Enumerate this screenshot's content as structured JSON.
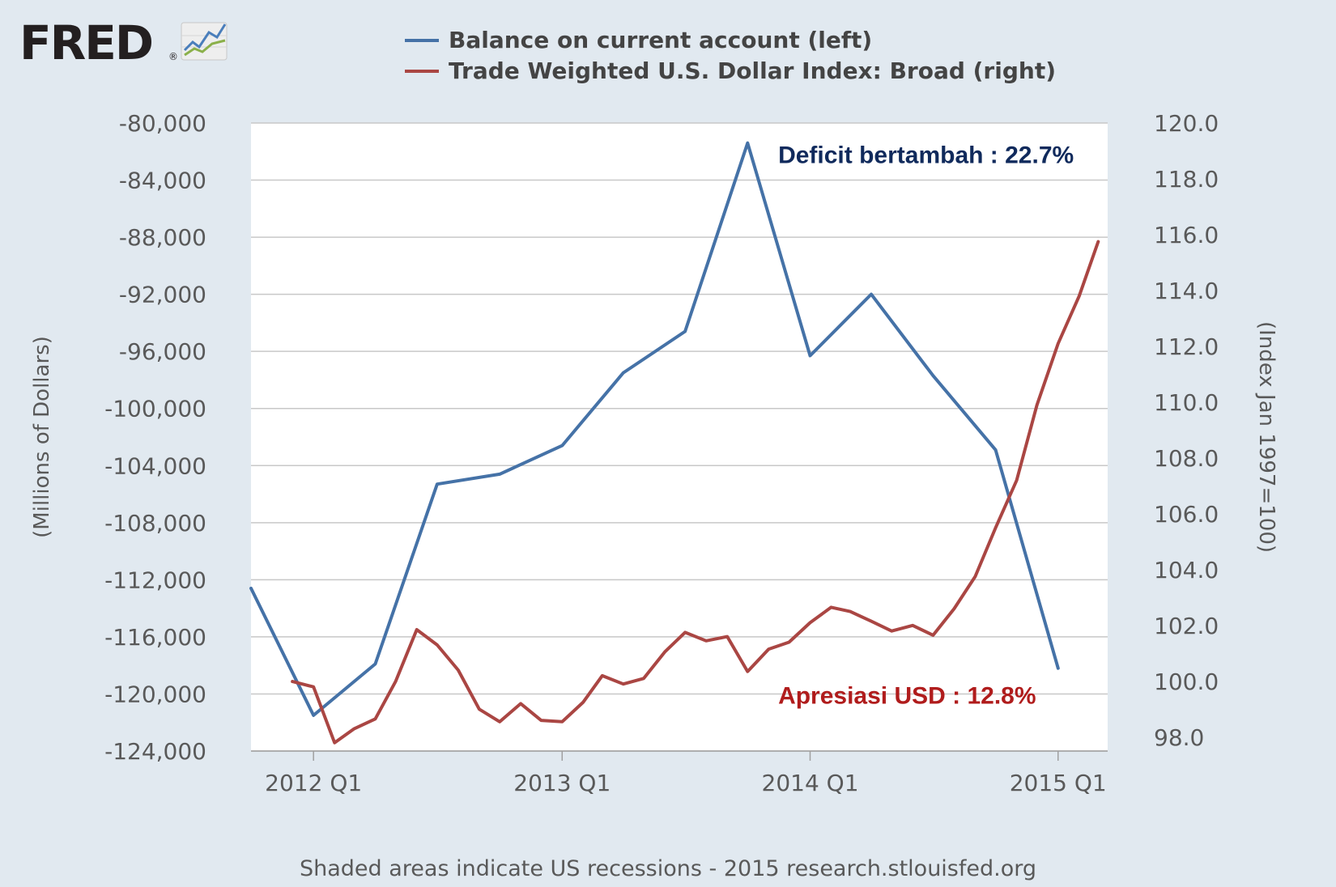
{
  "logo": {
    "text": "FRED",
    "registered": "®",
    "icon": "fred-chart-icon"
  },
  "footer": {
    "text": "Shaded areas indicate US recessions - 2015 research.stlouisfed.org"
  },
  "chart_data": {
    "type": "line",
    "legend_position": "top-center",
    "grid": true,
    "colors": {
      "series_left": "#4572a7",
      "series_right": "#aa4643",
      "annotation_left": "#102a5c",
      "annotation_right": "#b01c1c",
      "plot_bg": "#ffffff",
      "page_bg": "#e1e9f0"
    },
    "x_ticks": [
      {
        "label": "2012 Q1",
        "date": "2012-01-01"
      },
      {
        "label": "2013 Q1",
        "date": "2013-01-01"
      },
      {
        "label": "2014 Q1",
        "date": "2014-01-01"
      },
      {
        "label": "2015 Q1",
        "date": "2015-01-01"
      }
    ],
    "xlim": [
      "2011-10-01",
      "2015-03-15"
    ],
    "y_left": {
      "label": "(Millions of Dollars)",
      "ylim": [
        -124000,
        -80000
      ],
      "ticks": [
        -80000,
        -84000,
        -88000,
        -92000,
        -96000,
        -100000,
        -104000,
        -108000,
        -112000,
        -116000,
        -120000,
        -124000
      ],
      "tick_labels": [
        "-80,000",
        "-84,000",
        "-88,000",
        "-92,000",
        "-96,000",
        "-100,000",
        "-104,000",
        "-108,000",
        "-112,000",
        "-116,000",
        "-120,000",
        "-124,000"
      ]
    },
    "y_right": {
      "label": "(Index Jan 1997=100)",
      "ylim": [
        97.5,
        120
      ],
      "ticks": [
        120,
        118,
        116,
        114,
        112,
        110,
        108,
        106,
        104,
        102,
        100,
        98
      ],
      "tick_labels": [
        "120.0",
        "118.0",
        "116.0",
        "114.0",
        "112.0",
        "110.0",
        "108.0",
        "106.0",
        "104.0",
        "102.0",
        "100.0",
        "98.0"
      ]
    },
    "series": [
      {
        "name": "Balance on current account (left)",
        "axis": "left",
        "points": [
          {
            "x": "2011-10-01",
            "y": -112600
          },
          {
            "x": "2012-01-01",
            "y": -121500
          },
          {
            "x": "2012-04-01",
            "y": -117900
          },
          {
            "x": "2012-07-01",
            "y": -105300
          },
          {
            "x": "2012-10-01",
            "y": -104600
          },
          {
            "x": "2013-01-01",
            "y": -102600
          },
          {
            "x": "2013-04-01",
            "y": -97500
          },
          {
            "x": "2013-07-01",
            "y": -94600
          },
          {
            "x": "2013-10-01",
            "y": -81400
          },
          {
            "x": "2014-01-01",
            "y": -96300
          },
          {
            "x": "2014-04-01",
            "y": -92000
          },
          {
            "x": "2014-07-01",
            "y": -97700
          },
          {
            "x": "2014-10-01",
            "y": -102900
          },
          {
            "x": "2015-01-01",
            "y": -118200
          }
        ]
      },
      {
        "name": "Trade Weighted U.S. Dollar Index: Broad (right)",
        "axis": "right",
        "points": [
          {
            "x": "2011-12-01",
            "y": 99.99
          },
          {
            "x": "2012-01-01",
            "y": 99.8
          },
          {
            "x": "2012-02-01",
            "y": 97.8
          },
          {
            "x": "2012-03-01",
            "y": 98.3
          },
          {
            "x": "2012-04-01",
            "y": 98.65
          },
          {
            "x": "2012-05-01",
            "y": 100.0
          },
          {
            "x": "2012-06-01",
            "y": 101.85
          },
          {
            "x": "2012-07-01",
            "y": 101.3
          },
          {
            "x": "2012-08-01",
            "y": 100.4
          },
          {
            "x": "2012-09-01",
            "y": 99.0
          },
          {
            "x": "2012-10-01",
            "y": 98.55
          },
          {
            "x": "2012-11-01",
            "y": 99.2
          },
          {
            "x": "2012-12-01",
            "y": 98.6
          },
          {
            "x": "2013-01-01",
            "y": 98.55
          },
          {
            "x": "2013-02-01",
            "y": 99.25
          },
          {
            "x": "2013-03-01",
            "y": 100.2
          },
          {
            "x": "2013-04-01",
            "y": 99.9
          },
          {
            "x": "2013-05-01",
            "y": 100.1
          },
          {
            "x": "2013-06-01",
            "y": 101.05
          },
          {
            "x": "2013-07-01",
            "y": 101.75
          },
          {
            "x": "2013-08-01",
            "y": 101.45
          },
          {
            "x": "2013-09-01",
            "y": 101.6
          },
          {
            "x": "2013-10-01",
            "y": 100.35
          },
          {
            "x": "2013-11-01",
            "y": 101.15
          },
          {
            "x": "2013-12-01",
            "y": 101.4
          },
          {
            "x": "2014-01-01",
            "y": 102.1
          },
          {
            "x": "2014-02-01",
            "y": 102.65
          },
          {
            "x": "2014-03-01",
            "y": 102.5
          },
          {
            "x": "2014-04-01",
            "y": 102.15
          },
          {
            "x": "2014-05-01",
            "y": 101.8
          },
          {
            "x": "2014-06-01",
            "y": 102.0
          },
          {
            "x": "2014-07-01",
            "y": 101.65
          },
          {
            "x": "2014-08-01",
            "y": 102.6
          },
          {
            "x": "2014-09-01",
            "y": 103.75
          },
          {
            "x": "2014-10-01",
            "y": 105.5
          },
          {
            "x": "2014-11-01",
            "y": 107.2
          },
          {
            "x": "2014-12-01",
            "y": 109.9
          },
          {
            "x": "2015-01-01",
            "y": 112.1
          },
          {
            "x": "2015-02-01",
            "y": 113.8
          },
          {
            "x": "2015-03-01",
            "y": 115.75
          }
        ]
      }
    ],
    "annotations": [
      {
        "text": "Deficit bertambah : 22.7%",
        "axis": "left",
        "x": "2013-11-15",
        "y": -82800,
        "color": "annotation_left"
      },
      {
        "text": "Apresiasi USD : 12.8%",
        "axis": "right",
        "x": "2013-11-15",
        "y": 99.2,
        "color": "annotation_right"
      }
    ]
  }
}
